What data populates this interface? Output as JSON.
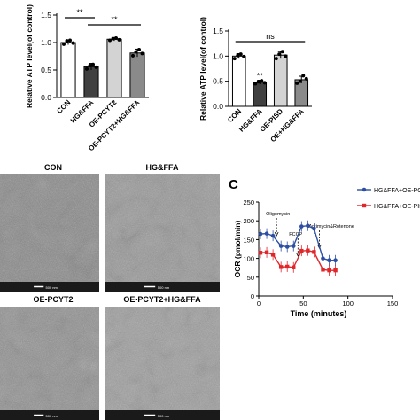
{
  "chart_data": [
    {
      "type": "bar",
      "panel": "",
      "ylabel": "Relative ATP level(of control)",
      "ylim": [
        0,
        1.5
      ],
      "yticks": [
        "0.0",
        "0.5",
        "1.0",
        "1.5"
      ],
      "categories": [
        "CON",
        "HG&FFA",
        "OE-PCYT2",
        "OE-PCYT2+HG&FFA"
      ],
      "values": [
        1.0,
        0.56,
        1.06,
        0.81
      ],
      "errors": [
        0.04,
        0.06,
        0.03,
        0.07
      ],
      "points": [
        [
          0.97,
          1.03,
          1.04,
          0.99
        ],
        [
          0.52,
          0.58,
          0.6,
          0.55
        ],
        [
          1.04,
          1.07,
          1.08,
          1.05
        ],
        [
          0.76,
          0.83,
          0.87,
          0.8
        ]
      ],
      "bar_colors": [
        "#ffffff",
        "#404040",
        "#d3d3d3",
        "#8a8a8a"
      ],
      "significance": [
        {
          "from": 0,
          "to": 1,
          "label": "**"
        },
        {
          "from": 1,
          "to": 3,
          "label": "**"
        }
      ]
    },
    {
      "type": "bar",
      "panel": "",
      "ylabel": "Relative ATP level(of control)",
      "ylim": [
        0,
        1.5
      ],
      "yticks": [
        "0.0",
        "0.5",
        "1.0",
        "1.5"
      ],
      "categories": [
        "CON",
        "HG&FFA",
        "OE-PISD",
        "OE+HG&FFA"
      ],
      "values": [
        1.0,
        0.48,
        1.02,
        0.53
      ],
      "errors": [
        0.05,
        0.04,
        0.07,
        0.07
      ],
      "points": [
        [
          0.95,
          1.01,
          1.04,
          0.99
        ],
        [
          0.45,
          0.49,
          0.51,
          0.47
        ],
        [
          0.95,
          1.04,
          1.09,
          1.0
        ],
        [
          0.46,
          0.5,
          0.61,
          0.55
        ]
      ],
      "bar_colors": [
        "#ffffff",
        "#404040",
        "#d3d3d3",
        "#8a8a8a"
      ],
      "point_labels": [
        {
          "index": 1,
          "label": "**"
        }
      ],
      "significance": [
        {
          "from": 0,
          "to": 3,
          "label": "ns"
        }
      ]
    },
    {
      "type": "line",
      "panel": "C",
      "xlabel": "Time (minutes)",
      "ylabel": "OCR (pmol/min)",
      "xlim": [
        0,
        150
      ],
      "ylim": [
        0,
        250
      ],
      "xticks": [
        "0",
        "50",
        "100",
        "150"
      ],
      "yticks": [
        "0",
        "50",
        "100",
        "150",
        "200",
        "250"
      ],
      "x": [
        2,
        9,
        16,
        25,
        32,
        39,
        48,
        55,
        62,
        72,
        79,
        86
      ],
      "series": [
        {
          "name": "HG&FFA+OE-PC",
          "color": "#2d4fa3",
          "values": [
            165,
            166,
            160,
            133,
            131,
            133,
            185,
            187,
            179,
            100,
            95,
            95
          ]
        },
        {
          "name": "HG&FFA+OE-PIS",
          "color": "#e0262b",
          "values": [
            115,
            116,
            110,
            77,
            78,
            76,
            120,
            121,
            117,
            70,
            68,
            68
          ]
        }
      ],
      "annotations": [
        {
          "label": "Oligomycin",
          "x": 20
        },
        {
          "label": "FCCP",
          "x": 44
        },
        {
          "label": "Antimycin&Rotenone",
          "x": 68
        }
      ]
    }
  ],
  "micrographs": {
    "panel_letter": "",
    "scale_bar": "500 nm",
    "tiles": [
      {
        "label": "CON",
        "tone": "#8c8c8c"
      },
      {
        "label": "HG&FFA",
        "tone": "#9a9a9a"
      },
      {
        "label": "OE-PCYT2",
        "tone": "#939393"
      },
      {
        "label": "OE-PCYT2+HG&FFA",
        "tone": "#a0a0a0"
      }
    ]
  }
}
